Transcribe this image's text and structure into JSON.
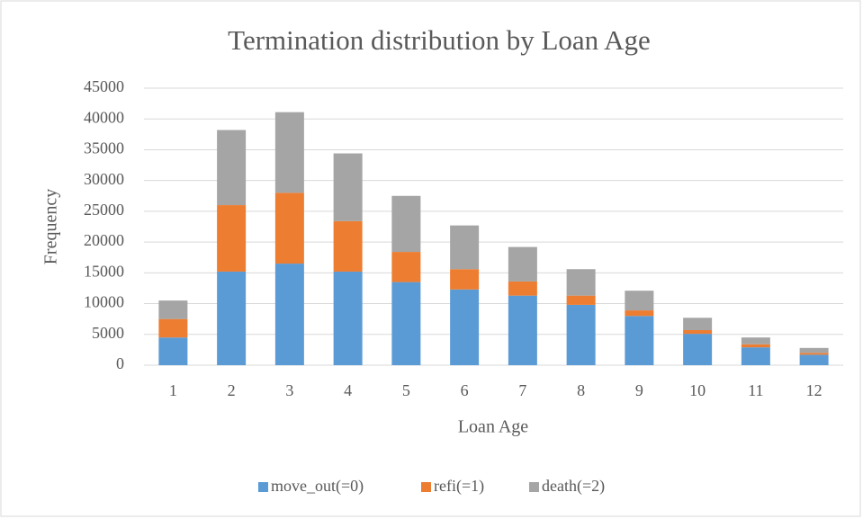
{
  "chart_data": {
    "type": "stacked_bar",
    "title": "Termination distribution by Loan Age",
    "x_label": "Loan Age",
    "y_label": "Frequency",
    "categories": [
      "1",
      "2",
      "3",
      "4",
      "5",
      "6",
      "7",
      "8",
      "9",
      "10",
      "11",
      "12"
    ],
    "series": [
      {
        "name": "move_out(=0)",
        "color": "#5b9bd5",
        "values": [
          4500,
          15200,
          16500,
          15200,
          13500,
          12300,
          11300,
          9800,
          8000,
          5100,
          2900,
          1700
        ]
      },
      {
        "name": "refi(=1)",
        "color": "#ed7d31",
        "values": [
          3000,
          10800,
          11500,
          8200,
          4900,
          3300,
          2300,
          1500,
          900,
          600,
          500,
          300
        ]
      },
      {
        "name": "death(=2)",
        "color": "#a5a5a5",
        "values": [
          3000,
          12200,
          13100,
          11000,
          9100,
          7100,
          5600,
          4300,
          3200,
          2000,
          1100,
          800
        ]
      }
    ],
    "ylim": [
      0,
      45000
    ],
    "yticks": [
      0,
      5000,
      10000,
      15000,
      20000,
      25000,
      30000,
      35000,
      40000,
      45000
    ],
    "grid": true,
    "legend": "bottom"
  }
}
